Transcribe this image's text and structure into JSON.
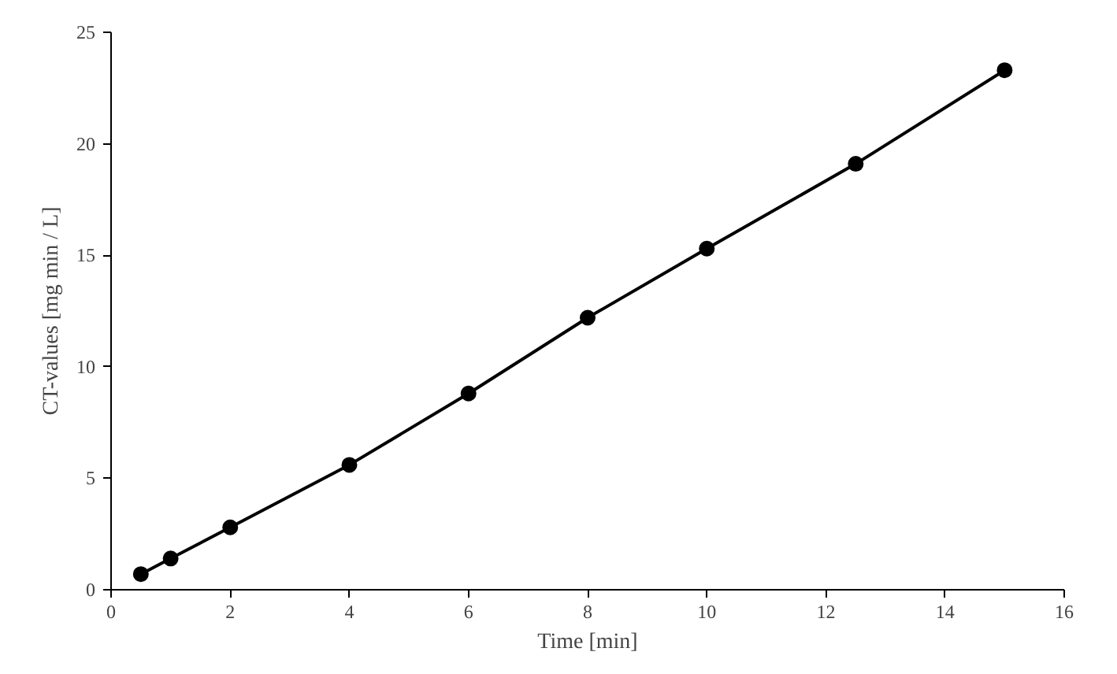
{
  "chart_data": {
    "type": "line",
    "xlabel": "Time [min]",
    "ylabel": "CT-values [mg min / L]",
    "x": [
      0.5,
      1,
      2,
      4,
      6,
      8,
      10,
      12.5,
      15
    ],
    "series": [
      {
        "color": "#000000",
        "values": [
          0.7,
          1.4,
          2.8,
          5.6,
          8.8,
          12.2,
          15.3,
          19.1,
          23.3
        ]
      }
    ],
    "xlim": [
      0,
      16
    ],
    "xticks": [
      0,
      2,
      4,
      6,
      8,
      10,
      12,
      14,
      16
    ],
    "ylim": [
      0,
      25
    ],
    "yticks": [
      0,
      5,
      10,
      15,
      20,
      25
    ],
    "grid": false,
    "marker": "circle",
    "line_style": "solid"
  }
}
